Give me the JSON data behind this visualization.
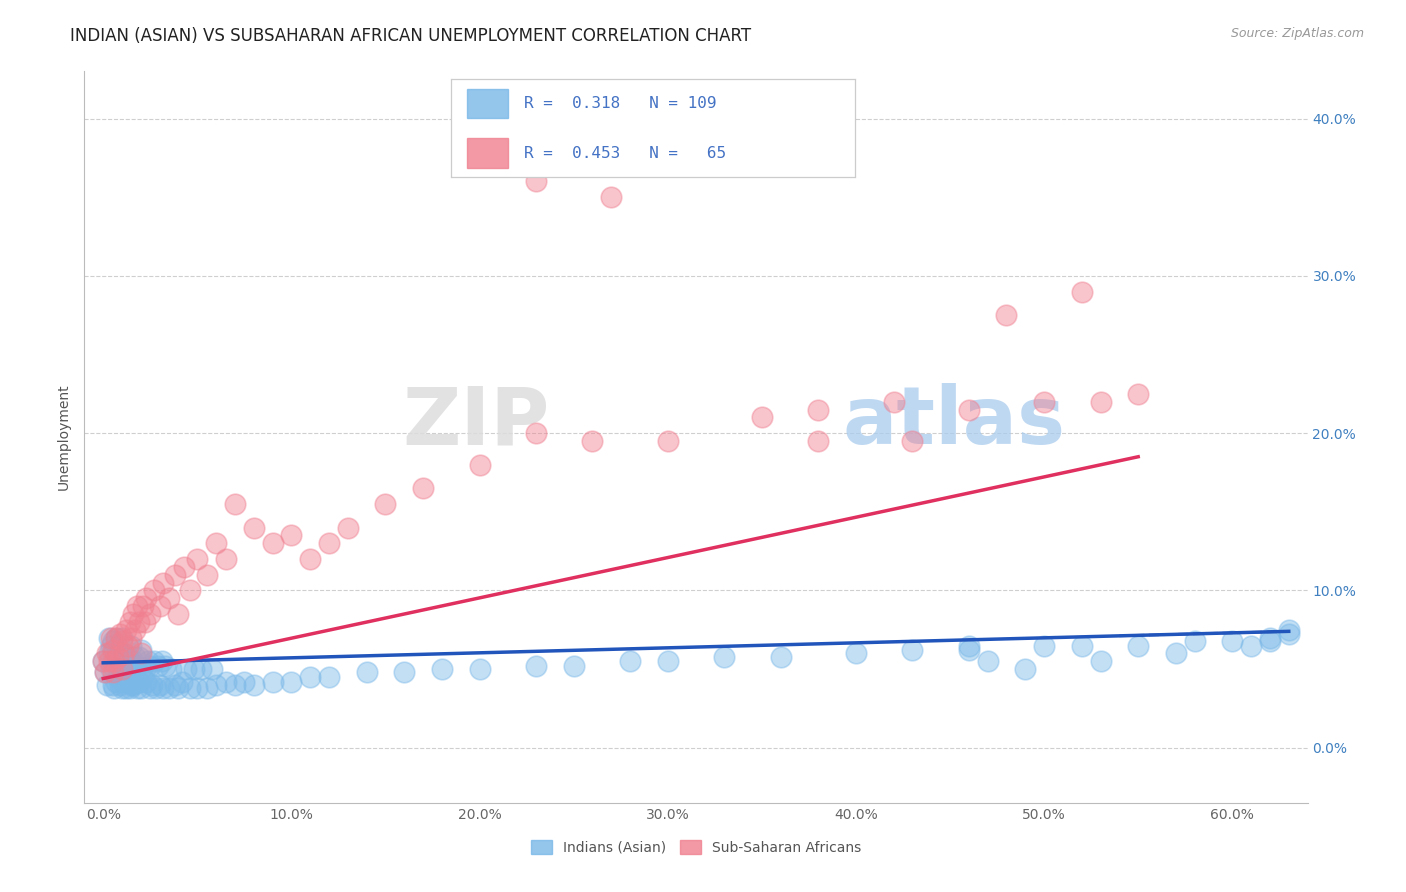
{
  "title": "INDIAN (ASIAN) VS SUBSAHARAN AFRICAN UNEMPLOYMENT CORRELATION CHART",
  "source": "Source: ZipAtlas.com",
  "ylabel": "Unemployment",
  "xtick_labels": [
    "0.0%",
    "10.0%",
    "20.0%",
    "30.0%",
    "40.0%",
    "50.0%",
    "60.0%"
  ],
  "xtick_vals": [
    0.0,
    0.1,
    0.2,
    0.3,
    0.4,
    0.5,
    0.6
  ],
  "ytick_labels": [
    "0.0%",
    "10.0%",
    "20.0%",
    "30.0%",
    "40.0%"
  ],
  "ytick_vals": [
    0.0,
    0.1,
    0.2,
    0.3,
    0.4
  ],
  "xlim": [
    -0.01,
    0.64
  ],
  "ylim": [
    -0.035,
    0.43
  ],
  "legend_r_indian": "0.318",
  "legend_n_indian": "109",
  "legend_r_african": "0.453",
  "legend_n_african": "65",
  "legend_label_indian": "Indians (Asian)",
  "legend_label_african": "Sub-Saharan Africans",
  "color_indian": "#7AB8E8",
  "color_african": "#F08090",
  "trendline_color_indian": "#2255BB",
  "trendline_color_african": "#E03060",
  "watermark_zip": "ZIP",
  "watermark_atlas": "atlas",
  "title_fontsize": 12,
  "tick_fontsize": 10,
  "right_tick_color": "#4080C0",
  "indian_x": [
    0.0,
    0.001,
    0.002,
    0.003,
    0.003,
    0.004,
    0.004,
    0.005,
    0.005,
    0.005,
    0.006,
    0.006,
    0.006,
    0.007,
    0.007,
    0.007,
    0.008,
    0.008,
    0.009,
    0.009,
    0.01,
    0.01,
    0.01,
    0.01,
    0.011,
    0.011,
    0.012,
    0.012,
    0.013,
    0.013,
    0.014,
    0.014,
    0.015,
    0.015,
    0.015,
    0.016,
    0.016,
    0.017,
    0.017,
    0.018,
    0.018,
    0.019,
    0.019,
    0.02,
    0.02,
    0.02,
    0.021,
    0.022,
    0.023,
    0.024,
    0.025,
    0.025,
    0.026,
    0.027,
    0.028,
    0.029,
    0.03,
    0.031,
    0.032,
    0.033,
    0.035,
    0.036,
    0.038,
    0.04,
    0.042,
    0.044,
    0.046,
    0.048,
    0.05,
    0.052,
    0.055,
    0.058,
    0.06,
    0.065,
    0.07,
    0.075,
    0.08,
    0.09,
    0.1,
    0.11,
    0.12,
    0.14,
    0.16,
    0.18,
    0.2,
    0.23,
    0.25,
    0.28,
    0.3,
    0.33,
    0.36,
    0.4,
    0.43,
    0.46,
    0.5,
    0.52,
    0.55,
    0.58,
    0.6,
    0.62,
    0.62,
    0.63,
    0.63,
    0.61,
    0.57,
    0.53,
    0.49,
    0.47,
    0.46
  ],
  "indian_y": [
    0.055,
    0.048,
    0.04,
    0.06,
    0.07,
    0.05,
    0.065,
    0.04,
    0.055,
    0.068,
    0.038,
    0.05,
    0.062,
    0.042,
    0.058,
    0.07,
    0.045,
    0.055,
    0.04,
    0.06,
    0.038,
    0.05,
    0.06,
    0.07,
    0.042,
    0.055,
    0.038,
    0.052,
    0.042,
    0.058,
    0.038,
    0.055,
    0.04,
    0.052,
    0.065,
    0.04,
    0.055,
    0.042,
    0.058,
    0.038,
    0.052,
    0.042,
    0.058,
    0.038,
    0.05,
    0.062,
    0.045,
    0.05,
    0.042,
    0.055,
    0.038,
    0.052,
    0.04,
    0.055,
    0.038,
    0.052,
    0.04,
    0.055,
    0.038,
    0.052,
    0.038,
    0.05,
    0.04,
    0.038,
    0.042,
    0.05,
    0.038,
    0.05,
    0.038,
    0.05,
    0.038,
    0.05,
    0.04,
    0.042,
    0.04,
    0.042,
    0.04,
    0.042,
    0.042,
    0.045,
    0.045,
    0.048,
    0.048,
    0.05,
    0.05,
    0.052,
    0.052,
    0.055,
    0.055,
    0.058,
    0.058,
    0.06,
    0.062,
    0.062,
    0.065,
    0.065,
    0.065,
    0.068,
    0.068,
    0.07,
    0.068,
    0.072,
    0.075,
    0.065,
    0.06,
    0.055,
    0.05,
    0.055,
    0.065
  ],
  "african_x": [
    0.0,
    0.001,
    0.002,
    0.003,
    0.004,
    0.005,
    0.005,
    0.006,
    0.007,
    0.008,
    0.009,
    0.01,
    0.01,
    0.011,
    0.012,
    0.013,
    0.014,
    0.015,
    0.016,
    0.017,
    0.018,
    0.019,
    0.02,
    0.021,
    0.022,
    0.023,
    0.025,
    0.027,
    0.03,
    0.032,
    0.035,
    0.038,
    0.04,
    0.043,
    0.046,
    0.05,
    0.055,
    0.06,
    0.065,
    0.07,
    0.08,
    0.09,
    0.1,
    0.11,
    0.12,
    0.13,
    0.15,
    0.17,
    0.2,
    0.23,
    0.26,
    0.3,
    0.35,
    0.38,
    0.42,
    0.46,
    0.5,
    0.53,
    0.55,
    0.27,
    0.52,
    0.48,
    0.23,
    0.43,
    0.38
  ],
  "african_y": [
    0.055,
    0.048,
    0.06,
    0.055,
    0.07,
    0.048,
    0.062,
    0.055,
    0.07,
    0.058,
    0.072,
    0.05,
    0.068,
    0.06,
    0.075,
    0.065,
    0.08,
    0.07,
    0.085,
    0.075,
    0.09,
    0.08,
    0.06,
    0.09,
    0.08,
    0.095,
    0.085,
    0.1,
    0.09,
    0.105,
    0.095,
    0.11,
    0.085,
    0.115,
    0.1,
    0.12,
    0.11,
    0.13,
    0.12,
    0.155,
    0.14,
    0.13,
    0.135,
    0.12,
    0.13,
    0.14,
    0.155,
    0.165,
    0.18,
    0.2,
    0.195,
    0.195,
    0.21,
    0.215,
    0.22,
    0.215,
    0.22,
    0.22,
    0.225,
    0.35,
    0.29,
    0.275,
    0.36,
    0.195,
    0.195
  ]
}
